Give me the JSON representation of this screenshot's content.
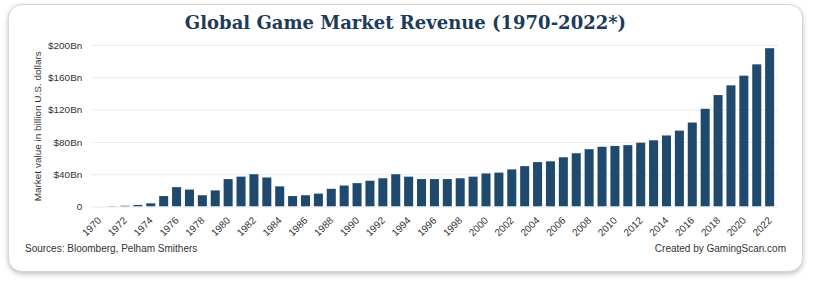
{
  "chart_data": {
    "type": "bar",
    "title": "Global Game Market Revenue (1970-2022*)",
    "y_label": "Market value in billion U.S. dollars",
    "annotations": [
      "Sources: Bloomberg, Pelham Smithers",
      "Created by GamingScan.com"
    ],
    "categories": [
      "1970",
      null,
      "1972",
      null,
      "1974",
      null,
      "1976",
      null,
      "1978",
      null,
      "1980",
      null,
      "1982",
      null,
      "1984",
      null,
      "1986",
      null,
      "1988",
      null,
      "1990",
      null,
      "1992",
      null,
      "1994",
      null,
      "1996",
      null,
      "1998",
      null,
      "2000",
      null,
      "2002",
      null,
      "2004",
      null,
      "2006",
      null,
      "2008",
      null,
      "2010",
      null,
      "2012",
      null,
      "2014",
      null,
      "2016",
      null,
      "2018",
      null,
      "2020",
      null,
      "2022"
    ],
    "values": [
      0,
      0.5,
      1,
      2,
      4,
      13,
      24,
      21,
      14,
      20,
      34,
      37,
      40,
      36,
      25,
      13,
      14,
      16,
      22,
      26,
      29,
      32,
      35,
      40,
      37,
      34,
      34,
      34,
      35,
      37,
      41,
      42,
      46,
      50,
      55,
      56,
      61,
      66,
      71,
      74,
      75,
      76,
      79,
      82,
      88,
      94,
      104,
      121,
      138,
      150,
      162,
      176,
      196
    ],
    "color": "#1f4a6e",
    "ylim": [
      0,
      200
    ],
    "yticks": [
      0,
      {
        "value": 40,
        "label": "$40Bn"
      },
      {
        "value": 80,
        "label": "$80Bn"
      },
      {
        "value": 120,
        "label": "$120Bn"
      },
      {
        "value": 160,
        "label": "$160Bn"
      },
      {
        "value": 200,
        "label": "$200Bn"
      }
    ],
    "grid": true
  }
}
